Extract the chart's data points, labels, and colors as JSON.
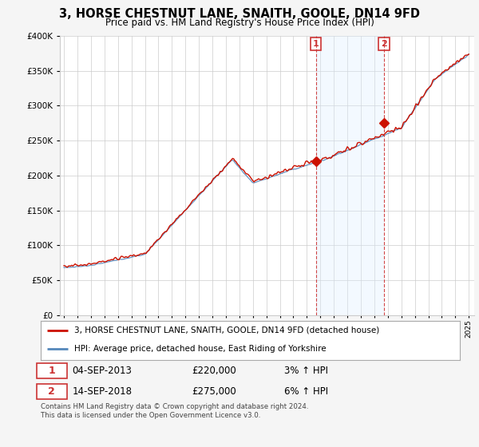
{
  "title": "3, HORSE CHESTNUT LANE, SNAITH, GOOLE, DN14 9FD",
  "subtitle": "Price paid vs. HM Land Registry's House Price Index (HPI)",
  "legend_line1": "3, HORSE CHESTNUT LANE, SNAITH, GOOLE, DN14 9FD (detached house)",
  "legend_line2": "HPI: Average price, detached house, East Riding of Yorkshire",
  "footnote": "Contains HM Land Registry data © Crown copyright and database right 2024.\nThis data is licensed under the Open Government Licence v3.0.",
  "transaction1_date": "04-SEP-2013",
  "transaction1_price": "£220,000",
  "transaction1_hpi": "3% ↑ HPI",
  "transaction2_date": "14-SEP-2018",
  "transaction2_price": "£275,000",
  "transaction2_hpi": "6% ↑ HPI",
  "hpi_color": "#5588bb",
  "price_color": "#cc1100",
  "dashed_color": "#cc3333",
  "background_color": "#f5f5f5",
  "plot_bg_color": "#ffffff",
  "span_color": "#ddeeff",
  "ylim": [
    0,
    400000
  ],
  "yticks": [
    0,
    50000,
    100000,
    150000,
    200000,
    250000,
    300000,
    350000,
    400000
  ],
  "transaction1_year": 2013.67,
  "transaction1_value": 220000,
  "transaction2_year": 2018.71,
  "transaction2_value": 275000,
  "xstart": 1995,
  "xend": 2025
}
